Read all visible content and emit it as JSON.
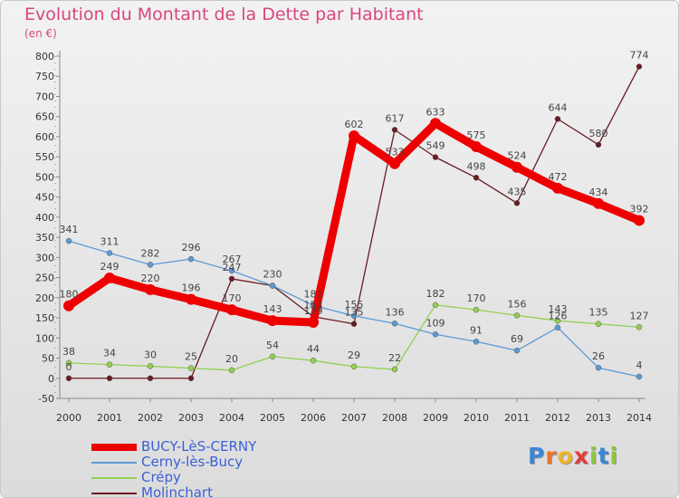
{
  "title": "Evolution du Montant de la Dette par Habitant",
  "subtitle": "(en €)",
  "logo_letters": [
    {
      "ch": "P",
      "color": "#3a86d6"
    },
    {
      "ch": "r",
      "color": "#e7762a"
    },
    {
      "ch": "o",
      "color": "#f0b42a"
    },
    {
      "ch": "x",
      "color": "#e33a3a"
    },
    {
      "ch": "i",
      "color": "#8cc63f"
    },
    {
      "ch": "t",
      "color": "#3a86d6"
    },
    {
      "ch": "i",
      "color": "#8cc63f"
    }
  ],
  "chart_data": {
    "type": "line",
    "x": [
      2000,
      2001,
      2002,
      2003,
      2004,
      2005,
      2006,
      2007,
      2008,
      2009,
      2010,
      2011,
      2012,
      2013,
      2014
    ],
    "ylim": [
      -50,
      800
    ],
    "yticks": [
      -50,
      0,
      50,
      100,
      150,
      200,
      250,
      300,
      350,
      400,
      450,
      500,
      550,
      600,
      650,
      700,
      750,
      800
    ],
    "grid": false,
    "legend_position": "bottom-left",
    "series": [
      {
        "name": "BUCY-LèS-CERNY",
        "color": "#ee0000",
        "values": [
          180,
          249,
          220,
          196,
          170,
          143,
          139,
          602,
          533,
          633,
          575,
          524,
          472,
          434,
          392
        ]
      },
      {
        "name": "Cerny-lès-Bucy",
        "color": "#5b9bd5",
        "values": [
          341,
          311,
          282,
          296,
          267,
          230,
          181,
          155,
          136,
          109,
          91,
          69,
          126,
          26,
          4
        ]
      },
      {
        "name": "Crépy",
        "color": "#92d050",
        "values": [
          38,
          34,
          30,
          25,
          20,
          54,
          44,
          29,
          22,
          182,
          170,
          156,
          143,
          135,
          127
        ]
      },
      {
        "name": "Molinchart",
        "color": "#6b1a22",
        "values": [
          0,
          0,
          0,
          0,
          247,
          230,
          153,
          135,
          617,
          549,
          498,
          435,
          644,
          580,
          774
        ]
      }
    ],
    "point_labels": [
      {
        "series": 0,
        "shown": [
          true,
          true,
          true,
          true,
          true,
          true,
          true,
          true,
          true,
          true,
          true,
          true,
          true,
          true,
          true
        ]
      },
      {
        "series": 1,
        "shown": [
          true,
          true,
          true,
          true,
          true,
          false,
          true,
          true,
          true,
          true,
          true,
          true,
          true,
          true,
          true
        ]
      },
      {
        "series": 2,
        "shown": [
          true,
          true,
          true,
          true,
          true,
          true,
          true,
          true,
          true,
          true,
          true,
          true,
          true,
          true,
          true
        ]
      },
      {
        "series": 3,
        "shown": [
          true,
          false,
          false,
          false,
          true,
          true,
          true,
          true,
          true,
          true,
          true,
          true,
          true,
          true,
          true
        ]
      }
    ]
  }
}
